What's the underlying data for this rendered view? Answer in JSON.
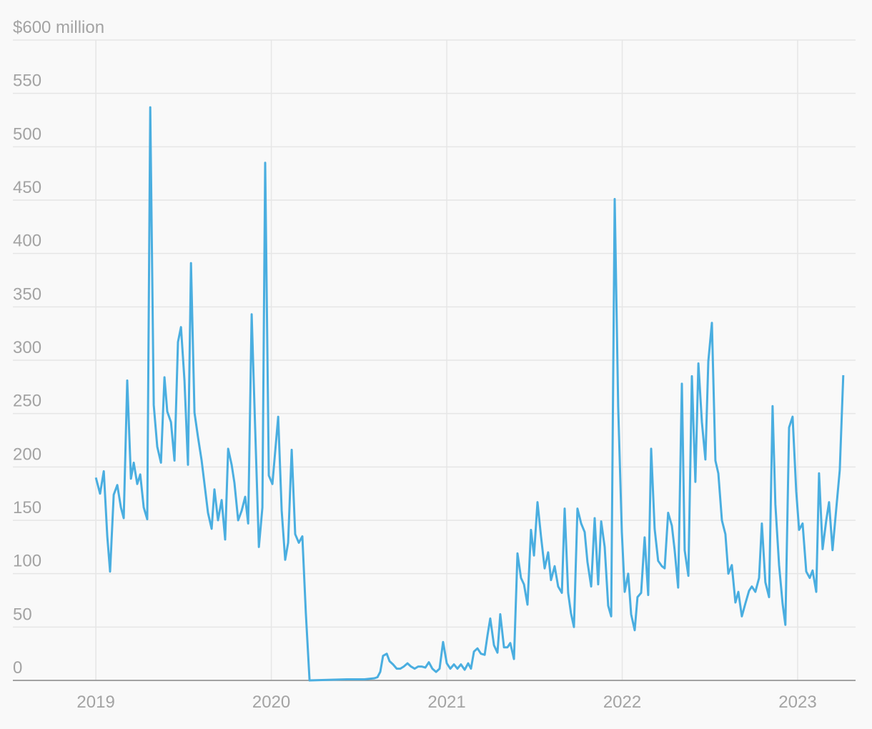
{
  "chart_data": {
    "type": "line",
    "color": "#4aaee0",
    "grid": true,
    "xlim": [
      2018.527,
      2023.33
    ],
    "xticks": [
      2019,
      2020,
      2021,
      2022,
      2023
    ],
    "ylim": [
      0,
      600
    ],
    "yticks": [
      0,
      50,
      100,
      150,
      200,
      250,
      300,
      350,
      400,
      450,
      500,
      550,
      {
        "value": 600,
        "label": "$600 million"
      }
    ],
    "x": [
      2019.0,
      2019.024,
      2019.045,
      2019.065,
      2019.081,
      2019.102,
      2019.122,
      2019.143,
      2019.159,
      2019.179,
      2019.2,
      2019.216,
      2019.236,
      2019.253,
      2019.273,
      2019.293,
      2019.31,
      2019.33,
      2019.35,
      2019.371,
      2019.391,
      2019.407,
      2019.428,
      2019.448,
      2019.468,
      2019.485,
      2019.505,
      2019.525,
      2019.542,
      2019.562,
      2019.582,
      2019.603,
      2019.619,
      2019.639,
      2019.66,
      2019.676,
      2019.696,
      2019.717,
      2019.737,
      2019.754,
      2019.774,
      2019.79,
      2019.811,
      2019.831,
      2019.851,
      2019.868,
      2019.888,
      2019.908,
      2019.929,
      2019.949,
      2019.965,
      2019.986,
      2020.006,
      2020.039,
      2020.059,
      2020.079,
      2020.096,
      2020.116,
      2020.136,
      2020.157,
      2020.177,
      2020.197,
      2020.218,
      2020.43,
      2020.531,
      2020.588,
      2020.605,
      2020.621,
      2020.637,
      2020.658,
      2020.674,
      2020.694,
      2020.715,
      2020.735,
      2020.755,
      2020.776,
      2020.796,
      2020.817,
      2020.837,
      2020.857,
      2020.878,
      2020.898,
      2020.918,
      2020.939,
      2020.959,
      2020.979,
      2021.0,
      2021.02,
      2021.041,
      2021.061,
      2021.081,
      2021.102,
      2021.122,
      2021.138,
      2021.155,
      2021.175,
      2021.195,
      2021.216,
      2021.232,
      2021.248,
      2021.269,
      2021.289,
      2021.305,
      2021.326,
      2021.346,
      2021.362,
      2021.383,
      2021.403,
      2021.423,
      2021.44,
      2021.46,
      2021.48,
      2021.497,
      2021.517,
      2021.537,
      2021.558,
      2021.578,
      2021.594,
      2021.615,
      2021.635,
      2021.656,
      2021.672,
      2021.692,
      2021.708,
      2021.725,
      2021.745,
      2021.766,
      2021.786,
      2021.802,
      2021.823,
      2021.843,
      2021.863,
      2021.88,
      2021.9,
      2021.92,
      2021.937,
      2021.957,
      2021.977,
      2021.998,
      2022.014,
      2022.034,
      2022.051,
      2022.071,
      2022.087,
      2022.108,
      2022.128,
      2022.148,
      2022.165,
      2022.185,
      2022.205,
      2022.226,
      2022.242,
      2022.262,
      2022.283,
      2022.299,
      2022.319,
      2022.34,
      2022.356,
      2022.377,
      2022.397,
      2022.417,
      2022.434,
      2022.454,
      2022.474,
      2022.491,
      2022.511,
      2022.531,
      2022.548,
      2022.568,
      2022.588,
      2022.605,
      2022.625,
      2022.645,
      2022.662,
      2022.682,
      2022.702,
      2022.723,
      2022.739,
      2022.759,
      2022.78,
      2022.796,
      2022.816,
      2022.837,
      2022.857,
      2022.873,
      2022.894,
      2022.914,
      2022.93,
      2022.951,
      2022.971,
      2022.992,
      2023.008,
      2023.028,
      2023.049,
      2023.069,
      2023.085,
      2023.106,
      2023.122,
      2023.142,
      2023.163,
      2023.179,
      2023.199,
      2023.22,
      2023.24,
      2023.26
    ],
    "values": [
      190,
      175,
      196,
      135,
      102,
      174,
      183,
      162,
      152,
      281,
      189,
      204,
      184,
      193,
      162,
      151,
      537,
      258,
      219,
      204,
      284,
      252,
      242,
      206,
      317,
      331,
      281,
      202,
      391,
      251,
      228,
      206,
      184,
      157,
      142,
      179,
      150,
      169,
      132,
      217,
      202,
      185,
      150,
      159,
      172,
      147,
      343,
      236,
      125,
      162,
      485,
      192,
      184,
      247,
      159,
      113,
      129,
      216,
      137,
      129,
      135,
      63,
      0,
      1,
      1,
      2,
      3,
      8,
      23,
      25,
      18,
      15,
      11,
      11,
      13,
      16,
      13,
      11,
      13,
      13,
      12,
      17,
      11,
      8,
      11,
      36,
      16,
      11,
      15,
      11,
      15,
      10,
      16,
      11,
      27,
      30,
      25,
      24,
      42,
      58,
      33,
      26,
      62,
      31,
      31,
      35,
      20,
      119,
      96,
      90,
      71,
      141,
      117,
      167,
      135,
      105,
      120,
      94,
      107,
      88,
      82,
      161,
      82,
      63,
      50,
      161,
      147,
      139,
      111,
      88,
      152,
      90,
      149,
      125,
      70,
      60,
      451,
      256,
      139,
      83,
      100,
      62,
      47,
      78,
      82,
      134,
      80,
      217,
      142,
      112,
      107,
      105,
      157,
      145,
      122,
      87,
      278,
      122,
      98,
      285,
      186,
      297,
      242,
      207,
      299,
      335,
      206,
      194,
      150,
      137,
      100,
      108,
      73,
      83,
      60,
      72,
      84,
      88,
      83,
      96,
      147,
      92,
      78,
      257,
      165,
      108,
      72,
      52,
      237,
      247,
      177,
      141,
      147,
      102,
      96,
      103,
      83,
      194,
      123,
      150,
      167,
      122,
      161,
      197,
      286
    ]
  }
}
